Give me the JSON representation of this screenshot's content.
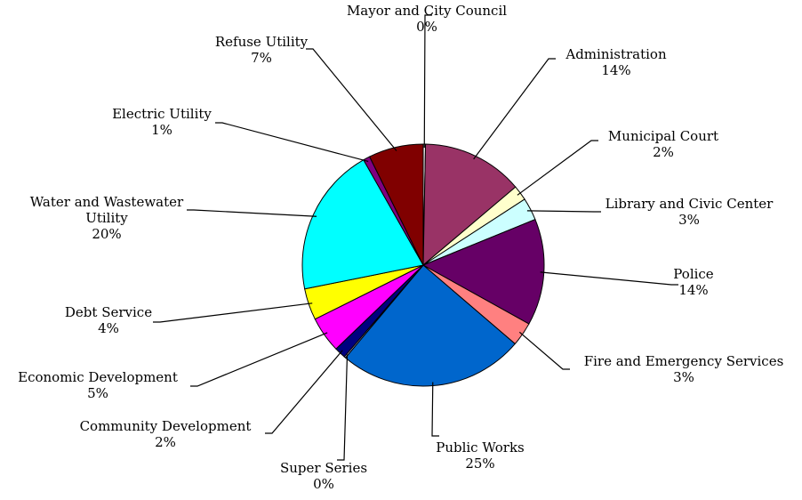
{
  "chart_data": {
    "type": "pie",
    "title": "",
    "start_angle_deg": 0,
    "direction": "clockwise",
    "slices": [
      {
        "label": "Mayor and City Council",
        "pct_label": "0%",
        "value": 0.3,
        "color": "#ffffff"
      },
      {
        "label": "Administration",
        "pct_label": "14%",
        "value": 13.5,
        "color": "#993366"
      },
      {
        "label": "Municipal Court",
        "pct_label": "2%",
        "value": 2.0,
        "color": "#ffffcc"
      },
      {
        "label": "Library and Civic Center",
        "pct_label": "3%",
        "value": 3.0,
        "color": "#ccffff"
      },
      {
        "label": "Police",
        "pct_label": "14%",
        "value": 14.2,
        "color": "#660066"
      },
      {
        "label": "Fire and Emergency Services",
        "pct_label": "3%",
        "value": 3.2,
        "color": "#ff8080"
      },
      {
        "label": "Public Works",
        "pct_label": "25%",
        "value": 24.8,
        "color": "#0066cc"
      },
      {
        "label": "Super Series",
        "pct_label": "0%",
        "value": 0.2,
        "color": "#ccccff"
      },
      {
        "label": "Community Development",
        "pct_label": "2%",
        "value": 1.5,
        "color": "#000080"
      },
      {
        "label": "Economic Development",
        "pct_label": "5%",
        "value": 4.8,
        "color": "#ff00ff"
      },
      {
        "label": "Debt Service",
        "pct_label": "4%",
        "value": 4.2,
        "color": "#ffff00"
      },
      {
        "label": "Water and Wastewater Utility",
        "pct_label": "20%",
        "value": 19.9,
        "color": "#00ffff"
      },
      {
        "label": "Electric Utility",
        "pct_label": "1%",
        "value": 0.9,
        "color": "#800080"
      },
      {
        "label": "Refuse Utility",
        "pct_label": "7%",
        "value": 7.3,
        "color": "#800000"
      }
    ]
  }
}
